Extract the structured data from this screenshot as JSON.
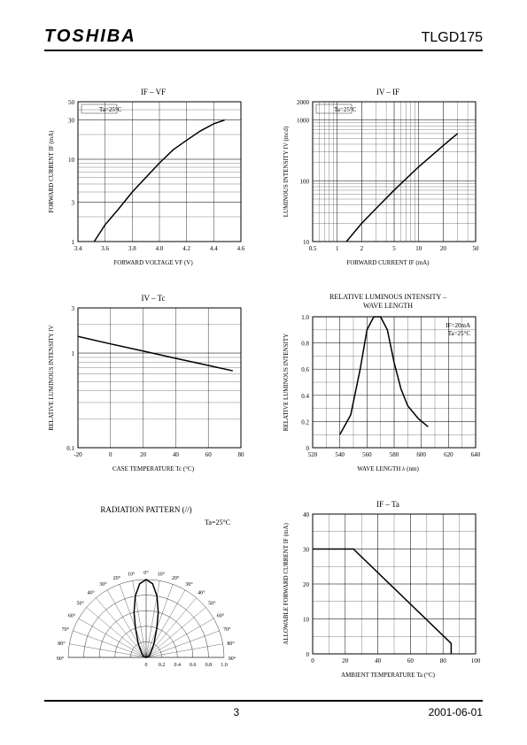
{
  "header": {
    "brand": "TOSHIBA",
    "part": "TLGD175"
  },
  "footer": {
    "page": "3",
    "date": "2001-06-01"
  },
  "colors": {
    "line": "#000000",
    "grid": "#000000",
    "minor_grid": "#000000",
    "bg": "#ffffff"
  },
  "chart1": {
    "type": "line-loglin",
    "title": "IF – VF",
    "condition": "Ta=25°C",
    "xlabel": "FORWARD VOLTAGE   VF   (V)",
    "ylabel": "FORWARD CURRENT   IF   (mA)",
    "xlim": [
      3.4,
      4.6
    ],
    "xticks": [
      "3.4",
      "3.6",
      "3.8",
      "4.0",
      "4.2",
      "4.4",
      "4.6"
    ],
    "ylim_log": [
      1,
      50
    ],
    "ymajor": [
      1,
      3,
      10,
      30,
      50
    ],
    "data": [
      [
        3.52,
        1
      ],
      [
        3.6,
        1.6
      ],
      [
        3.7,
        2.5
      ],
      [
        3.8,
        4
      ],
      [
        3.9,
        6
      ],
      [
        4.0,
        9
      ],
      [
        4.1,
        13
      ],
      [
        4.2,
        17
      ],
      [
        4.3,
        22
      ],
      [
        4.4,
        27
      ],
      [
        4.48,
        30
      ]
    ]
  },
  "chart2": {
    "type": "line-loglog",
    "title": "IV – IF",
    "condition": "Ta=25°C",
    "xlabel": "FORWARD CURRENT   IF   (mA)",
    "ylabel": "LUMINOUS INTENSITY   IV   (mcd)",
    "xlim_log": [
      0.5,
      50
    ],
    "xmajor": [
      "0.5",
      "1",
      "2",
      "5",
      "10",
      "20",
      "50"
    ],
    "ylim_log": [
      10,
      2000
    ],
    "ymajor": [
      "10",
      "100",
      "1000",
      "2000"
    ],
    "data": [
      [
        1.3,
        10
      ],
      [
        2,
        20
      ],
      [
        3,
        35
      ],
      [
        5,
        70
      ],
      [
        10,
        170
      ],
      [
        20,
        380
      ],
      [
        30,
        600
      ]
    ]
  },
  "chart3": {
    "type": "line-linlog",
    "title": "IV – Tc",
    "xlabel": "CASE TEMPERATURE   Tc   (°C)",
    "ylabel": "RELATIVE LUMINOUS INTENSITY   IV",
    "xlim": [
      -20,
      80
    ],
    "xticks": [
      "-20",
      "0",
      "20",
      "40",
      "60",
      "80"
    ],
    "ylim_log": [
      0.1,
      3
    ],
    "ymajor": [
      "0.1",
      "1",
      "3"
    ],
    "data": [
      [
        -20,
        1.5
      ],
      [
        0,
        1.25
      ],
      [
        20,
        1.05
      ],
      [
        40,
        0.88
      ],
      [
        60,
        0.74
      ],
      [
        75,
        0.65
      ]
    ]
  },
  "chart4": {
    "type": "line-linlin",
    "title": "RELATIVE LUMINOUS INTENSITY –\nWAVE LENGTH",
    "condition": "IF=20mA\nTa=25°C",
    "xlabel": "WAVE LENGTH   λ   (nm)",
    "ylabel": "RELATIVE LUMINOUS INTENSITY",
    "xlim": [
      520,
      640
    ],
    "xticks": [
      "520",
      "540",
      "560",
      "580",
      "600",
      "620",
      "640"
    ],
    "ylim": [
      0,
      1.0
    ],
    "yticks": [
      "0",
      "0.2",
      "0.4",
      "0.6",
      "0.8",
      "1.0"
    ],
    "data": [
      [
        540,
        0.1
      ],
      [
        548,
        0.25
      ],
      [
        555,
        0.6
      ],
      [
        560,
        0.9
      ],
      [
        565,
        1.0
      ],
      [
        570,
        1.0
      ],
      [
        575,
        0.9
      ],
      [
        580,
        0.65
      ],
      [
        585,
        0.45
      ],
      [
        590,
        0.32
      ],
      [
        598,
        0.22
      ],
      [
        605,
        0.16
      ]
    ]
  },
  "chart5": {
    "type": "polar",
    "title": "RADIATION PATTERN (//)",
    "condition": "Ta=25°C",
    "angle_ticks": [
      0,
      10,
      20,
      30,
      40,
      50,
      60,
      70,
      80,
      90
    ],
    "radial_ticks": [
      "0",
      "0.2",
      "0.4",
      "0.6",
      "0.8",
      "1.0"
    ],
    "data": [
      [
        -90,
        0
      ],
      [
        -80,
        0.02
      ],
      [
        -60,
        0.05
      ],
      [
        -40,
        0.1
      ],
      [
        -30,
        0.2
      ],
      [
        -20,
        0.4
      ],
      [
        -15,
        0.6
      ],
      [
        -10,
        0.8
      ],
      [
        -5,
        0.95
      ],
      [
        0,
        1.0
      ],
      [
        5,
        0.95
      ],
      [
        10,
        0.8
      ],
      [
        15,
        0.6
      ],
      [
        20,
        0.4
      ],
      [
        30,
        0.2
      ],
      [
        40,
        0.1
      ],
      [
        60,
        0.05
      ],
      [
        80,
        0.02
      ],
      [
        90,
        0
      ]
    ]
  },
  "chart6": {
    "type": "line-linlin",
    "title": "IF – Ta",
    "xlabel": "AMBIENT TEMPERATURE   Ta   (°C)",
    "ylabel": "ALLOWABLE FORWARD CURRENT   IF   (mA)",
    "xlim": [
      0,
      100
    ],
    "xticks": [
      "0",
      "20",
      "40",
      "60",
      "80",
      "100"
    ],
    "ylim": [
      0,
      40
    ],
    "yticks": [
      "0",
      "10",
      "20",
      "30",
      "40"
    ],
    "data": [
      [
        0,
        30
      ],
      [
        25,
        30
      ],
      [
        85,
        3
      ],
      [
        85,
        0
      ]
    ]
  }
}
